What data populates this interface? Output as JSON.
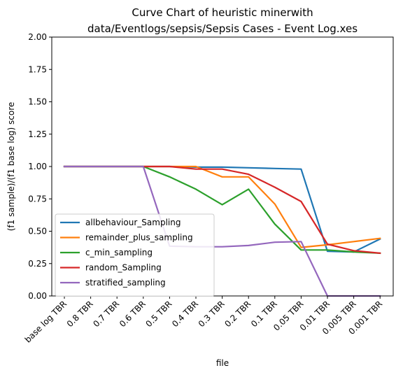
{
  "chart_data": {
    "type": "line",
    "title_lines": [
      "Curve Chart of heuristic minerwith",
      "data/Eventlogs/sepsis/Sepsis Cases - Event Log.xes"
    ],
    "xlabel": "file",
    "ylabel": "(f1 sample)/(f1 base log) score",
    "categories": [
      "base log TBR",
      "0.8 TBR",
      "0.7 TBR",
      "0.6 TBR",
      "0.5 TBR",
      "0.4 TBR",
      "0.3 TBR",
      "0.2 TBR",
      "0.1 TBR",
      "0.05 TBR",
      "0.01 TBR",
      "0.005 TBR",
      "0.001 TBR"
    ],
    "ylim": [
      0,
      2
    ],
    "yticks": [
      "0.00",
      "0.25",
      "0.50",
      "0.75",
      "1.00",
      "1.25",
      "1.50",
      "1.75",
      "2.00"
    ],
    "grid": false,
    "legend_position": "lower-left",
    "series": [
      {
        "name": "allbehaviour_Sampling",
        "color": "#1f77b4",
        "values": [
          1.0,
          1.0,
          1.0,
          1.0,
          1.0,
          0.995,
          0.995,
          0.99,
          0.985,
          0.98,
          0.345,
          0.34,
          0.44
        ]
      },
      {
        "name": "remainder_plus_sampling",
        "color": "#ff7f0e",
        "values": [
          1.0,
          1.0,
          1.0,
          1.0,
          1.0,
          1.0,
          0.92,
          0.92,
          0.71,
          0.375,
          0.395,
          0.42,
          0.445
        ]
      },
      {
        "name": "c_min_sampling",
        "color": "#2ca02c",
        "values": [
          1.0,
          1.0,
          1.0,
          1.0,
          0.92,
          0.825,
          0.705,
          0.825,
          0.555,
          0.355,
          0.355,
          0.34,
          0.33
        ]
      },
      {
        "name": "random_Sampling",
        "color": "#d62728",
        "values": [
          1.0,
          1.0,
          1.0,
          1.0,
          1.0,
          0.98,
          0.98,
          0.94,
          0.84,
          0.73,
          0.4,
          0.35,
          0.33
        ]
      },
      {
        "name": "stratified_sampling",
        "color": "#9467bd",
        "values": [
          1.0,
          1.0,
          1.0,
          1.0,
          0.385,
          0.38,
          0.38,
          0.39,
          0.415,
          0.42,
          0.0,
          0.0,
          0.0
        ]
      }
    ]
  }
}
